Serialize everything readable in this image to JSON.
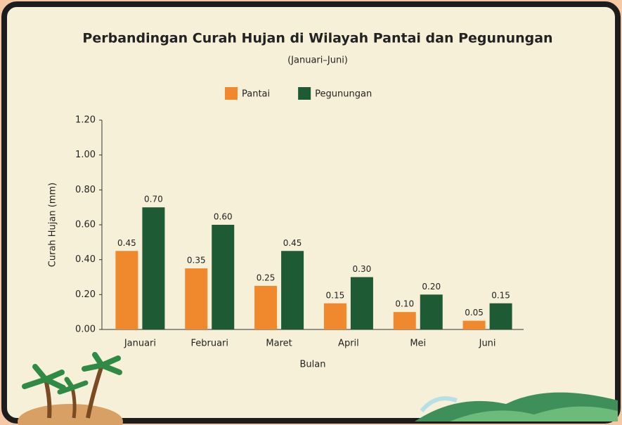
{
  "chart_data": {
    "type": "bar",
    "title": "Perbandingan Curah Hujan di Wilayah Pantai dan Pegunungan",
    "subtitle": "(Januari–Juni)",
    "x_label": "Bulan",
    "y_label": "Curah Hujan (mm)",
    "categories": [
      "Januari",
      "Februari",
      "Maret",
      "April",
      "Mei",
      "Juni"
    ],
    "series": [
      {
        "name": "Pantai",
        "color": "#f0882e",
        "values": [
          0.45,
          0.35,
          0.25,
          0.15,
          0.1,
          0.05
        ],
        "value_labels": [
          "0.45",
          "0.35",
          "0.25",
          "0.15",
          "0.10",
          "0.05"
        ]
      },
      {
        "name": "Pegunungan",
        "color": "#1e5a34",
        "values": [
          0.7,
          0.6,
          0.45,
          0.3,
          0.2,
          0.15
        ],
        "value_labels": [
          "0.70",
          "0.60",
          "0.45",
          "0.30",
          "0.20",
          "0.15"
        ]
      }
    ],
    "ylim": [
      0,
      1.2
    ],
    "yticks": [
      {
        "value": 0,
        "label": "0.00"
      },
      {
        "value": 0.2,
        "label": "0.20"
      },
      {
        "value": 0.4,
        "label": "0.40"
      },
      {
        "value": 0.6,
        "label": "0.60"
      },
      {
        "value": 0.8,
        "label": "0.80"
      },
      {
        "value": 1.0,
        "label": "1.00"
      },
      {
        "value": 1.2,
        "label": "1.20"
      }
    ],
    "legend": "top"
  }
}
